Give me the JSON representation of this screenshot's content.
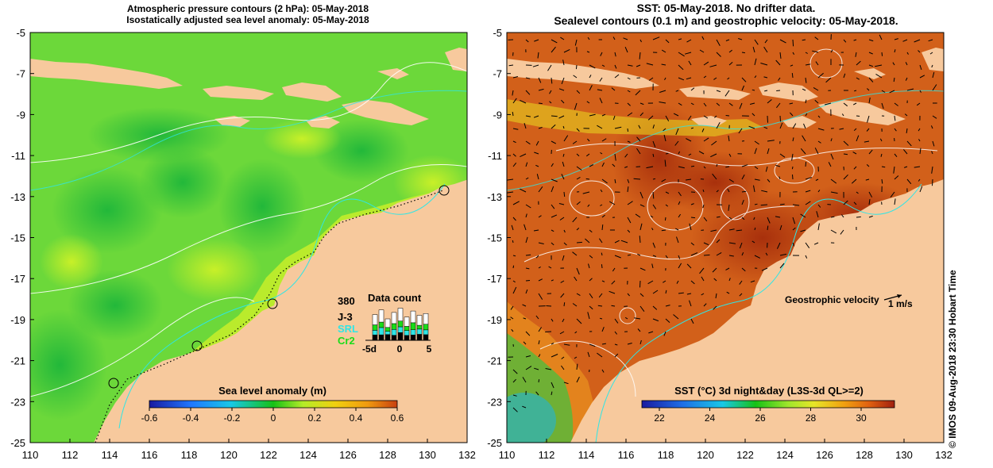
{
  "left_panel": {
    "title_line1": "Atmospheric pressure contours (2 hPa): 05-May-2018",
    "title_line2": "Isostatically adjusted sea level anomaly: 05-May-2018",
    "x_ticks": [
      "110",
      "112",
      "114",
      "116",
      "118",
      "120",
      "122",
      "124",
      "126",
      "128",
      "130",
      "132"
    ],
    "y_ticks": [
      "-5",
      "-7",
      "-9",
      "-11",
      "-13",
      "-15",
      "-17",
      "-19",
      "-21",
      "-23",
      "-25"
    ],
    "colorbar_title": "Sea level anomaly (m)",
    "colorbar_ticks": [
      "-0.6",
      "-0.4",
      "-0.2",
      "0",
      "0.2",
      "0.4",
      "0.6"
    ],
    "colorbar_colors": [
      "#1a1aa0",
      "#1f78ff",
      "#19c8e6",
      "#16c116",
      "#7de62c",
      "#c8f028",
      "#f0d010",
      "#f09a10",
      "#c84010"
    ],
    "data_count": {
      "title": "Data count",
      "max_label": "380",
      "missions": [
        {
          "name": "J-3",
          "color": "#000000"
        },
        {
          "name": "SRL",
          "color": "#2ee6e6"
        },
        {
          "name": "Cr2",
          "color": "#19dc19"
        }
      ],
      "x_labels": [
        "-5d",
        "0",
        "5"
      ]
    }
  },
  "right_panel": {
    "title_line1": "SST: 05-May-2018. No drifter data.",
    "title_line2": "Sealevel contours (0.1 m) and geostrophic velocity: 05-May-2018.",
    "x_ticks": [
      "110",
      "112",
      "114",
      "116",
      "118",
      "120",
      "122",
      "124",
      "126",
      "128",
      "130",
      "132"
    ],
    "y_ticks": [
      "-5",
      "-7",
      "-9",
      "-11",
      "-13",
      "-15",
      "-17",
      "-19",
      "-21",
      "-23",
      "-25"
    ],
    "velocity_label": "Geostrophic velocity",
    "velocity_unit": "1 m/s",
    "colorbar_title": "SST (°C) 3d night&day (L3S-3d QL>=2)",
    "colorbar_ticks": [
      "22",
      "24",
      "26",
      "28",
      "30"
    ],
    "colorbar_colors": [
      "#1a1aa0",
      "#1f6ee6",
      "#19c8e6",
      "#16c116",
      "#8ce62c",
      "#e6e628",
      "#f0b010",
      "#e66e10",
      "#a02010"
    ]
  },
  "credit": "© IMOS 09-Aug-2018 23:30 Hobart Time",
  "colors": {
    "land": "#f7c99d",
    "sea_green": "#5ad03a",
    "sea_light": "#9be63a",
    "sst_orange": "#d2601a",
    "sst_dark": "#b8400f",
    "sst_cool": "#4aa83a"
  }
}
